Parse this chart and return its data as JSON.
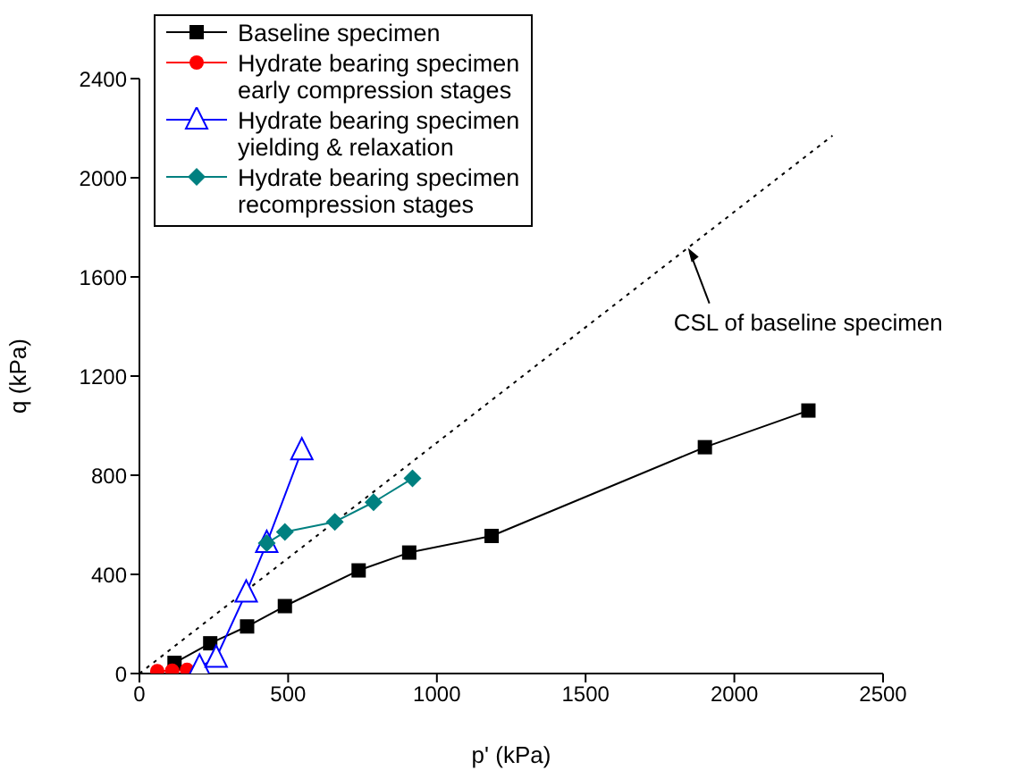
{
  "chart_data": {
    "type": "line",
    "xlabel": "p' (kPa)",
    "ylabel": "q (kPa)",
    "xlim": [
      0,
      2500
    ],
    "xticks": [
      0,
      500,
      1000,
      1500,
      2000,
      2500
    ],
    "ylim": [
      0,
      2400
    ],
    "yticks": [
      0,
      400,
      800,
      1200,
      1600,
      2000,
      2400
    ],
    "grid": false,
    "legend": "top left",
    "line_style": "solid",
    "series": [
      {
        "name": "Baseline specimen",
        "color": "#000000",
        "marker": "square",
        "x": [
          118,
          238,
          362,
          489,
          737,
          907,
          1184,
          1901,
          2249
        ],
        "values": [
          43,
          122,
          190,
          272,
          416,
          488,
          555,
          913,
          1061
        ]
      },
      {
        "name": "Hydrate bearing  specimen\nearly compression stages",
        "color": "#ff0000",
        "marker": "circle",
        "x": [
          60,
          110,
          160
        ],
        "values": [
          10,
          12,
          15
        ]
      },
      {
        "name": "Hydrate bearing  specimen\nyielding & relaxation",
        "color": "#0000ff",
        "marker": "triangle",
        "x": [
          202,
          258,
          359,
          428,
          546
        ],
        "values": [
          27,
          63,
          326,
          526,
          900
        ]
      },
      {
        "name": "Hydrate bearing  specimen\nrecompression stages",
        "color": "#008080",
        "marker": "diamond",
        "x": [
          428,
          489,
          657,
          787,
          918
        ],
        "values": [
          526,
          571,
          612,
          691,
          787
        ]
      },
      {
        "type": "line",
        "color": "#000000",
        "marker": "none",
        "line_style": "dotted",
        "x": [
          0,
          2330
        ],
        "values": [
          0,
          2170
        ]
      }
    ],
    "annotations": [
      {
        "text": "CSL of baseline specimen",
        "x": 1844,
        "y": 1717
      }
    ]
  }
}
